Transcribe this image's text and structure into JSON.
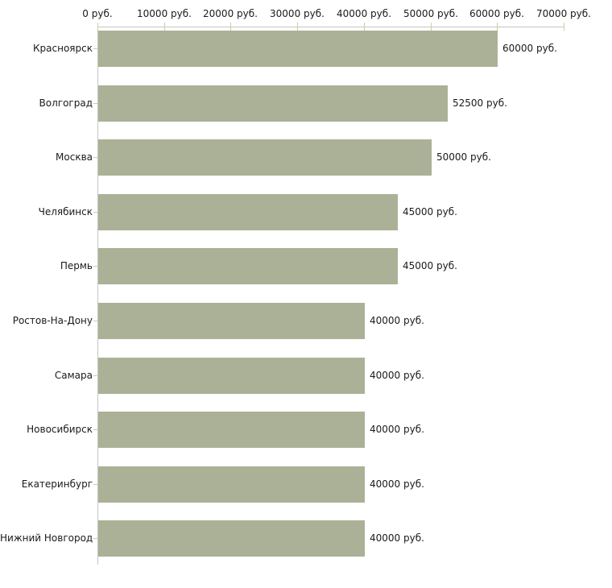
{
  "chart_data": {
    "type": "bar",
    "orientation": "horizontal",
    "title": "",
    "categories": [
      "Красноярск",
      "Волгоград",
      "Москва",
      "Челябинск",
      "Пермь",
      "Ростов-На-Дону",
      "Самара",
      "Новосибирск",
      "Екатеринбург",
      "Нижний Новгород"
    ],
    "values": [
      60000,
      52500,
      50000,
      45000,
      45000,
      40000,
      40000,
      40000,
      40000,
      40000
    ],
    "value_labels": [
      "60000 руб.",
      "52500 руб.",
      "50000 руб.",
      "45000 руб.",
      "45000 руб.",
      "40000 руб.",
      "40000 руб.",
      "40000 руб.",
      "40000 руб.",
      "40000 руб."
    ],
    "x_axis": {
      "position": "top",
      "range": [
        0,
        70000
      ],
      "ticks": [
        0,
        10000,
        20000,
        30000,
        40000,
        50000,
        60000,
        70000
      ],
      "tick_labels": [
        "0 руб.",
        "10000 руб.",
        "20000 руб.",
        "30000 руб.",
        "40000 руб.",
        "50000 руб.",
        "60000 руб.",
        "70000 руб."
      ]
    },
    "grid": false,
    "legend": false,
    "colors": {
      "bar": "#abb196",
      "axis_line": "#c6c6c6",
      "tick": "#cdcda3",
      "text": "#1a1a1a",
      "background": "#ffffff"
    }
  }
}
